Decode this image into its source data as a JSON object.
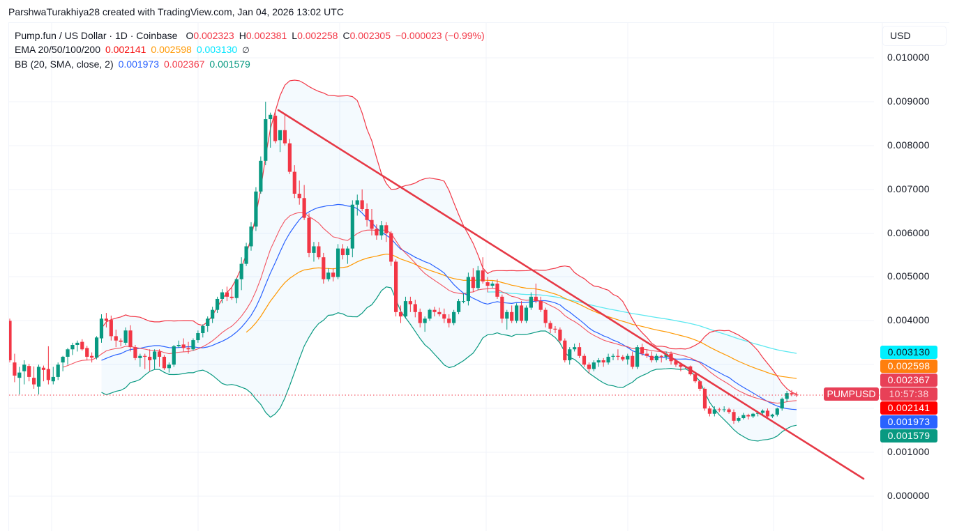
{
  "credit": "ParshwaTurakhiya28 created with TradingView.com, Jan 04, 2026 13:02 UTC",
  "legend": {
    "symbol": "Pump.fun / US Dollar · 1D · Coinbase",
    "ohlc": {
      "o_label": "O",
      "o": "0.002323",
      "h_label": "H",
      "h": "0.002381",
      "l_label": "L",
      "l": "0.002258",
      "c_label": "C",
      "c": "0.002305",
      "change": "−0.000023 (−0.99%)"
    },
    "ema": {
      "label": "EMA 20/50/100/200",
      "v20": "0.002141",
      "v50": "0.002598",
      "v100": "0.003130",
      "v200_icon": "∅"
    },
    "bb": {
      "label": "BB (20, SMA, close, 2)",
      "basis": "0.001973",
      "upper": "0.002367",
      "lower": "0.001579"
    }
  },
  "axis": {
    "unit": "USD",
    "ticks": [
      "0.010000",
      "0.009000",
      "0.008000",
      "0.007000",
      "0.006000",
      "0.005000",
      "0.004000",
      "0.001000",
      "0.000000"
    ],
    "badges": [
      {
        "label": "0.003130",
        "color": "#00f0ff",
        "text": "#131722"
      },
      {
        "label": "0.002598",
        "color": "#ff7f0e",
        "text": "#ffffff"
      },
      {
        "label": "0.002367",
        "color": "#e84057",
        "text": "#ffffff"
      },
      {
        "label": "10:57:38",
        "color": "#e84057",
        "text": "#fbd2d7"
      },
      {
        "label": "0.002141",
        "color": "#ff0000",
        "text": "#ffffff"
      },
      {
        "label": "0.001973",
        "color": "#2962ff",
        "text": "#ffffff"
      },
      {
        "label": "0.001579",
        "color": "#089981",
        "text": "#ffffff"
      }
    ],
    "symbol_badge": "PUMPUSD"
  },
  "colors": {
    "up": "#089981",
    "down": "#f23645",
    "ema20": "#f23645",
    "ema50": "#2962ff",
    "ema100": "#ff9800",
    "ema200": "#5ce8f0",
    "bb_upper": "#f23645",
    "bb_lower": "#089981",
    "bb_fill": "rgba(33,150,243,0.05)",
    "trendline": "#e63946",
    "grid": "#f0f3fa"
  },
  "chart_data": {
    "type": "candlestick",
    "title": "Pump.fun / US Dollar · 1D · Coinbase",
    "ylabel": "USD",
    "ylim": [
      0.0,
      0.0105
    ],
    "yticks": [
      0.0,
      0.001,
      0.004,
      0.005,
      0.006,
      0.007,
      0.008,
      0.009,
      0.01
    ],
    "grid": true,
    "last_price": 0.002305,
    "countdown": "10:57:38",
    "ohlc": [
      [
        0.004,
        0.00405,
        0.00305,
        0.0031
      ],
      [
        0.00305,
        0.00325,
        0.0026,
        0.00275
      ],
      [
        0.0027,
        0.00295,
        0.00232,
        0.00282
      ],
      [
        0.00285,
        0.0031,
        0.00255,
        0.003
      ],
      [
        0.00297,
        0.00302,
        0.00262,
        0.00272
      ],
      [
        0.0027,
        0.00296,
        0.00245,
        0.00255
      ],
      [
        0.0025,
        0.003,
        0.00232,
        0.00295
      ],
      [
        0.00293,
        0.00298,
        0.00262,
        0.00288
      ],
      [
        0.0029,
        0.00342,
        0.00255,
        0.00265
      ],
      [
        0.00262,
        0.00295,
        0.00255,
        0.00272
      ],
      [
        0.00272,
        0.00305,
        0.00265,
        0.003
      ],
      [
        0.00305,
        0.0032,
        0.00285,
        0.00318
      ],
      [
        0.00318,
        0.00338,
        0.003,
        0.00335
      ],
      [
        0.00335,
        0.0035,
        0.00322,
        0.00345
      ],
      [
        0.00345,
        0.00355,
        0.0033,
        0.0035
      ],
      [
        0.00352,
        0.00358,
        0.00332,
        0.00335
      ],
      [
        0.00338,
        0.00343,
        0.0031,
        0.00318
      ],
      [
        0.0032,
        0.00328,
        0.00305,
        0.00316
      ],
      [
        0.00316,
        0.00365,
        0.00312,
        0.00362
      ],
      [
        0.0036,
        0.00415,
        0.0035,
        0.00405
      ],
      [
        0.00405,
        0.00418,
        0.00385,
        0.004
      ],
      [
        0.00402,
        0.00412,
        0.00355,
        0.00365
      ],
      [
        0.00365,
        0.0038,
        0.0034,
        0.00355
      ],
      [
        0.00355,
        0.0036,
        0.00342,
        0.00352
      ],
      [
        0.0035,
        0.00385,
        0.00345,
        0.00378
      ],
      [
        0.00378,
        0.0039,
        0.0033,
        0.0034
      ],
      [
        0.0034,
        0.00345,
        0.0031,
        0.00315
      ],
      [
        0.00315,
        0.00325,
        0.00295,
        0.0032
      ],
      [
        0.0032,
        0.00325,
        0.0029,
        0.00318
      ],
      [
        0.00318,
        0.00335,
        0.00285,
        0.0031
      ],
      [
        0.00312,
        0.00335,
        0.0029,
        0.0033
      ],
      [
        0.0033,
        0.00335,
        0.00295,
        0.00318
      ],
      [
        0.00318,
        0.00322,
        0.00288,
        0.00292
      ],
      [
        0.00292,
        0.00305,
        0.00282,
        0.003
      ],
      [
        0.003,
        0.00345,
        0.00295,
        0.00342
      ],
      [
        0.00342,
        0.00355,
        0.00338,
        0.00345
      ],
      [
        0.00346,
        0.0036,
        0.0033,
        0.00338
      ],
      [
        0.00338,
        0.00352,
        0.00325,
        0.00335
      ],
      [
        0.00335,
        0.0036,
        0.00332,
        0.00356
      ],
      [
        0.00356,
        0.00378,
        0.0035,
        0.00372
      ],
      [
        0.00372,
        0.00392,
        0.00362,
        0.00388
      ],
      [
        0.00388,
        0.0041,
        0.00375,
        0.00405
      ],
      [
        0.00405,
        0.00432,
        0.00395,
        0.00425
      ],
      [
        0.00425,
        0.00455,
        0.00418,
        0.0045
      ],
      [
        0.0045,
        0.00472,
        0.0044,
        0.00465
      ],
      [
        0.00465,
        0.00478,
        0.00445,
        0.00455
      ],
      [
        0.00455,
        0.00475,
        0.00448,
        0.00452
      ],
      [
        0.00452,
        0.00498,
        0.0044,
        0.00495
      ],
      [
        0.00495,
        0.00545,
        0.0047,
        0.0053
      ],
      [
        0.0053,
        0.00578,
        0.00525,
        0.0057
      ],
      [
        0.0057,
        0.00625,
        0.0056,
        0.00615
      ],
      [
        0.00615,
        0.00705,
        0.00605,
        0.00695
      ],
      [
        0.00695,
        0.00775,
        0.0069,
        0.00765
      ],
      [
        0.00765,
        0.009,
        0.00755,
        0.0086
      ],
      [
        0.0086,
        0.00875,
        0.00795,
        0.0087
      ],
      [
        0.00868,
        0.0088,
        0.00805,
        0.0081
      ],
      [
        0.00812,
        0.0083,
        0.00785,
        0.00835
      ],
      [
        0.00835,
        0.0087,
        0.008,
        0.00805
      ],
      [
        0.00805,
        0.00815,
        0.00735,
        0.0074
      ],
      [
        0.0074,
        0.00755,
        0.0068,
        0.0069
      ],
      [
        0.0069,
        0.0072,
        0.00665,
        0.0068
      ],
      [
        0.0068,
        0.0071,
        0.0063,
        0.00635
      ],
      [
        0.00635,
        0.00645,
        0.00545,
        0.00555
      ],
      [
        0.00555,
        0.0058,
        0.00535,
        0.0057
      ],
      [
        0.0057,
        0.0058,
        0.0054,
        0.00545
      ],
      [
        0.00545,
        0.00555,
        0.00485,
        0.00495
      ],
      [
        0.00495,
        0.0052,
        0.0049,
        0.0051
      ],
      [
        0.0051,
        0.0052,
        0.0049,
        0.005
      ],
      [
        0.005,
        0.00575,
        0.00495,
        0.00565
      ],
      [
        0.00565,
        0.00575,
        0.0054,
        0.0055
      ],
      [
        0.0055,
        0.0057,
        0.0053,
        0.00565
      ],
      [
        0.00565,
        0.00675,
        0.00545,
        0.00665
      ],
      [
        0.00665,
        0.00688,
        0.0064,
        0.00675
      ],
      [
        0.00675,
        0.007,
        0.0065,
        0.00655
      ],
      [
        0.00655,
        0.00668,
        0.00615,
        0.0063
      ],
      [
        0.0063,
        0.00655,
        0.00595,
        0.0061
      ],
      [
        0.0061,
        0.0062,
        0.00585,
        0.00595
      ],
      [
        0.00595,
        0.00628,
        0.00585,
        0.00618
      ],
      [
        0.00618,
        0.00625,
        0.0058,
        0.006
      ],
      [
        0.006,
        0.00605,
        0.00525,
        0.00535
      ],
      [
        0.00535,
        0.0054,
        0.0041,
        0.0042
      ],
      [
        0.0042,
        0.00435,
        0.00395,
        0.0041
      ],
      [
        0.0041,
        0.00455,
        0.00405,
        0.00445
      ],
      [
        0.00445,
        0.00455,
        0.0042,
        0.00438
      ],
      [
        0.00438,
        0.00448,
        0.00408,
        0.0042
      ],
      [
        0.0042,
        0.00428,
        0.00385,
        0.00395
      ],
      [
        0.00395,
        0.0041,
        0.00375,
        0.00405
      ],
      [
        0.00405,
        0.00428,
        0.004,
        0.00425
      ],
      [
        0.00425,
        0.00432,
        0.0041,
        0.0042
      ],
      [
        0.0042,
        0.0043,
        0.0041,
        0.00415
      ],
      [
        0.00415,
        0.00428,
        0.00395,
        0.00405
      ],
      [
        0.00405,
        0.00415,
        0.00385,
        0.00395
      ],
      [
        0.00395,
        0.00425,
        0.0039,
        0.0042
      ],
      [
        0.0042,
        0.0045,
        0.00415,
        0.00445
      ],
      [
        0.00445,
        0.00462,
        0.0044,
        0.00445
      ],
      [
        0.00445,
        0.0051,
        0.00435,
        0.005
      ],
      [
        0.005,
        0.0052,
        0.00465,
        0.00475
      ],
      [
        0.00475,
        0.00525,
        0.0047,
        0.00515
      ],
      [
        0.00515,
        0.00545,
        0.00485,
        0.0049
      ],
      [
        0.00488,
        0.005,
        0.00465,
        0.0048
      ],
      [
        0.0048,
        0.0049,
        0.00475,
        0.00485
      ],
      [
        0.00485,
        0.00495,
        0.0045,
        0.00455
      ],
      [
        0.00455,
        0.0046,
        0.00395,
        0.00405
      ],
      [
        0.00405,
        0.00425,
        0.0038,
        0.0042
      ],
      [
        0.0042,
        0.00435,
        0.00395,
        0.004
      ],
      [
        0.004,
        0.0044,
        0.00395,
        0.00435
      ],
      [
        0.00435,
        0.00445,
        0.00395,
        0.004
      ],
      [
        0.004,
        0.00435,
        0.00395,
        0.0043
      ],
      [
        0.0043,
        0.00465,
        0.00425,
        0.00455
      ],
      [
        0.00455,
        0.00485,
        0.0044,
        0.00445
      ],
      [
        0.00445,
        0.00455,
        0.0042,
        0.00425
      ],
      [
        0.00425,
        0.0043,
        0.00385,
        0.00395
      ],
      [
        0.00395,
        0.004,
        0.00372,
        0.00382
      ],
      [
        0.00382,
        0.00388,
        0.00372,
        0.0038
      ],
      [
        0.0038,
        0.00385,
        0.0035,
        0.00355
      ],
      [
        0.00355,
        0.0036,
        0.00305,
        0.0031
      ],
      [
        0.0031,
        0.0034,
        0.003,
        0.00335
      ],
      [
        0.00335,
        0.00348,
        0.0033,
        0.0034
      ],
      [
        0.0034,
        0.0035,
        0.00315,
        0.0032
      ],
      [
        0.0032,
        0.00325,
        0.00295,
        0.003
      ],
      [
        0.003,
        0.00305,
        0.0028,
        0.0029
      ],
      [
        0.0029,
        0.0031,
        0.00285,
        0.00305
      ],
      [
        0.00305,
        0.00315,
        0.00295,
        0.0031
      ],
      [
        0.0031,
        0.00315,
        0.00295,
        0.00305
      ],
      [
        0.00305,
        0.00325,
        0.003,
        0.00318
      ],
      [
        0.00318,
        0.00325,
        0.0031,
        0.0032
      ],
      [
        0.0032,
        0.00335,
        0.0031,
        0.00318
      ],
      [
        0.00318,
        0.00322,
        0.00308,
        0.00312
      ],
      [
        0.00312,
        0.00325,
        0.003,
        0.0032
      ],
      [
        0.0032,
        0.0033,
        0.0029,
        0.00295
      ],
      [
        0.00295,
        0.00345,
        0.0029,
        0.0034
      ],
      [
        0.0034,
        0.00348,
        0.0032,
        0.00325
      ],
      [
        0.00325,
        0.00335,
        0.00315,
        0.0032
      ],
      [
        0.0032,
        0.0033,
        0.00305,
        0.0031
      ],
      [
        0.0031,
        0.00325,
        0.00305,
        0.0032
      ],
      [
        0.0032,
        0.00322,
        0.00305,
        0.00318
      ],
      [
        0.00318,
        0.0033,
        0.0031,
        0.00325
      ],
      [
        0.00325,
        0.0033,
        0.003,
        0.00308
      ],
      [
        0.00308,
        0.0031,
        0.00295,
        0.003
      ],
      [
        0.003,
        0.00302,
        0.00285,
        0.00295
      ],
      [
        0.00295,
        0.00298,
        0.0029,
        0.00296
      ],
      [
        0.00296,
        0.00298,
        0.00275,
        0.00278
      ],
      [
        0.00278,
        0.00282,
        0.00258,
        0.00262
      ],
      [
        0.00262,
        0.00265,
        0.0024,
        0.00245
      ],
      [
        0.00245,
        0.00248,
        0.00195,
        0.002
      ],
      [
        0.002,
        0.00205,
        0.00182,
        0.00188
      ],
      [
        0.00188,
        0.00205,
        0.00182,
        0.00198
      ],
      [
        0.00198,
        0.00202,
        0.00192,
        0.00197
      ],
      [
        0.00197,
        0.00205,
        0.00192,
        0.00198
      ],
      [
        0.00198,
        0.00202,
        0.00188,
        0.00192
      ],
      [
        0.00192,
        0.00198,
        0.00165,
        0.00172
      ],
      [
        0.00172,
        0.00182,
        0.00168,
        0.00178
      ],
      [
        0.00178,
        0.0019,
        0.00175,
        0.00185
      ],
      [
        0.00185,
        0.00188,
        0.00175,
        0.00182
      ],
      [
        0.00182,
        0.0019,
        0.00178,
        0.00188
      ],
      [
        0.00188,
        0.00192,
        0.00182,
        0.0019
      ],
      [
        0.0019,
        0.00198,
        0.00185,
        0.00195
      ],
      [
        0.00195,
        0.002,
        0.0018,
        0.00182
      ],
      [
        0.00182,
        0.00188,
        0.00178,
        0.00186
      ],
      [
        0.00186,
        0.00202,
        0.00182,
        0.002
      ],
      [
        0.002,
        0.00225,
        0.00195,
        0.00222
      ],
      [
        0.00222,
        0.0024,
        0.00215,
        0.00235
      ],
      [
        0.00235,
        0.00242,
        0.00228,
        0.00232
      ],
      [
        0.00232,
        0.00238,
        0.00226,
        0.0023
      ]
    ],
    "trendline": {
      "from": [
        0.0088,
        55
      ],
      "to": [
        0.0004,
        178
      ]
    }
  }
}
